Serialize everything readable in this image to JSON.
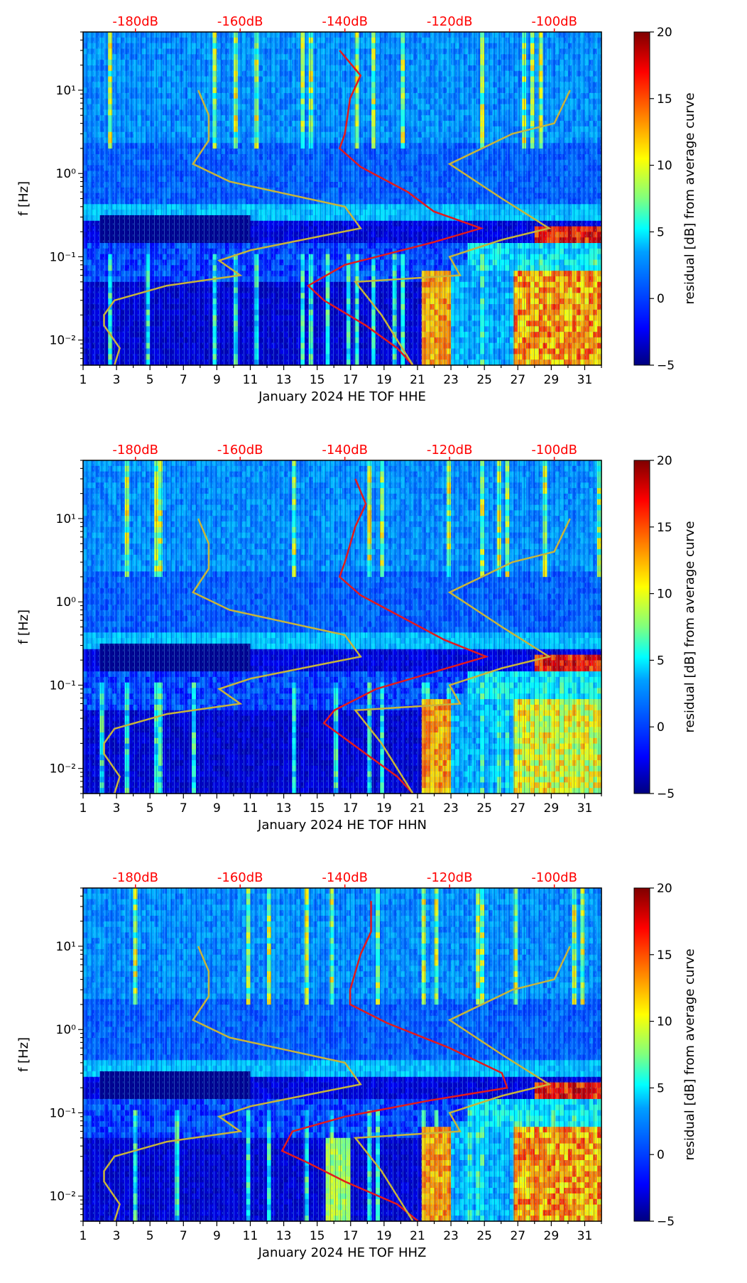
{
  "colors": {
    "noise_curve": "#e31a1c",
    "model_curve": "#c8b43a",
    "db_text": "#ff0000",
    "colormap": [
      "#00007f",
      "#0000ff",
      "#007fff",
      "#00ffff",
      "#7fff7f",
      "#ffff00",
      "#ff7f00",
      "#ff0000",
      "#7f0000"
    ]
  },
  "chart_data": [
    {
      "type": "heatmap",
      "title": "",
      "xlabel": "January 2024 HE TOF  HHE",
      "ylabel": "f [Hz]",
      "x_ticks": [
        "1",
        "3",
        "5",
        "7",
        "9",
        "11",
        "13",
        "15",
        "17",
        "19",
        "21",
        "23",
        "25",
        "27",
        "29",
        "31"
      ],
      "xlim": [
        1,
        32
      ],
      "y_ticks": [
        "10⁻²",
        "10⁻¹",
        "10⁰",
        "10¹"
      ],
      "ylim": [
        0.005,
        50
      ],
      "top_axis_labels": [
        "-180dB",
        "-160dB",
        "-140dB",
        "-120dB",
        "-100dB"
      ],
      "colorbar": {
        "label": "residual [dB] from average curve",
        "ticks": [
          "−5",
          "0",
          "5",
          "10",
          "15",
          "20"
        ],
        "range": [
          -5,
          20
        ]
      },
      "red_curve_db": [
        [
          -141,
          30
        ],
        [
          -137,
          15
        ],
        [
          -139,
          8
        ],
        [
          -140,
          3
        ],
        [
          -141,
          2
        ],
        [
          -137,
          1.2
        ],
        [
          -128,
          0.6
        ],
        [
          -123,
          0.35
        ],
        [
          -114,
          0.22
        ],
        [
          -123,
          0.15
        ],
        [
          -140,
          0.08
        ],
        [
          -147,
          0.045
        ],
        [
          -144,
          0.03
        ],
        [
          -136,
          0.015
        ],
        [
          -130,
          0.008
        ],
        [
          -127,
          0.005
        ]
      ],
      "yellow_curve_db": [
        [
          -168,
          10
        ],
        [
          -166,
          5
        ],
        [
          -166,
          2.5
        ],
        [
          -169,
          1.3
        ],
        [
          -162,
          0.8
        ],
        [
          -140,
          0.4
        ],
        [
          -137,
          0.22
        ],
        [
          -144,
          0.18
        ],
        [
          -158,
          0.12
        ],
        [
          -164,
          0.09
        ],
        [
          -160,
          0.06
        ],
        [
          -174,
          0.045
        ],
        [
          -184,
          0.03
        ],
        [
          -186,
          0.02
        ],
        [
          -186,
          0.015
        ],
        [
          -183,
          0.008
        ],
        [
          -184,
          0.005
        ]
      ],
      "yellow_curve2_db": [
        [
          -97,
          10
        ],
        [
          -100,
          4
        ],
        [
          -108,
          3
        ],
        [
          -120,
          1.3
        ],
        [
          -110,
          0.5
        ],
        [
          -101,
          0.22
        ],
        [
          -110,
          0.16
        ],
        [
          -120,
          0.1
        ],
        [
          -118,
          0.06
        ],
        [
          -138,
          0.05
        ],
        [
          -133,
          0.02
        ],
        [
          -127,
          0.005
        ]
      ]
    },
    {
      "type": "heatmap",
      "title": "",
      "xlabel": "January 2024 HE TOF  HHN",
      "ylabel": "f [Hz]",
      "x_ticks": [
        "1",
        "3",
        "5",
        "7",
        "9",
        "11",
        "13",
        "15",
        "17",
        "19",
        "21",
        "23",
        "25",
        "27",
        "29",
        "31"
      ],
      "xlim": [
        1,
        32
      ],
      "y_ticks": [
        "10⁻²",
        "10⁻¹",
        "10⁰",
        "10¹"
      ],
      "ylim": [
        0.005,
        50
      ],
      "top_axis_labels": [
        "-180dB",
        "-160dB",
        "-140dB",
        "-120dB",
        "-100dB"
      ],
      "colorbar": {
        "label": "residual [dB] from average curve",
        "ticks": [
          "−5",
          "0",
          "5",
          "10",
          "15",
          "20"
        ],
        "range": [
          -5,
          20
        ]
      },
      "red_curve_db": [
        [
          -138,
          30
        ],
        [
          -136,
          15
        ],
        [
          -138,
          8
        ],
        [
          -140,
          3
        ],
        [
          -141,
          2
        ],
        [
          -137,
          1.2
        ],
        [
          -128,
          0.6
        ],
        [
          -121,
          0.35
        ],
        [
          -113,
          0.22
        ],
        [
          -122,
          0.15
        ],
        [
          -134,
          0.09
        ],
        [
          -142,
          0.05
        ],
        [
          -144,
          0.035
        ],
        [
          -136,
          0.015
        ],
        [
          -130,
          0.008
        ],
        [
          -127,
          0.005
        ]
      ],
      "yellow_curve_db": [
        [
          -168,
          10
        ],
        [
          -166,
          5
        ],
        [
          -166,
          2.5
        ],
        [
          -169,
          1.3
        ],
        [
          -162,
          0.8
        ],
        [
          -140,
          0.4
        ],
        [
          -137,
          0.22
        ],
        [
          -144,
          0.18
        ],
        [
          -158,
          0.12
        ],
        [
          -164,
          0.09
        ],
        [
          -160,
          0.06
        ],
        [
          -174,
          0.045
        ],
        [
          -184,
          0.03
        ],
        [
          -186,
          0.02
        ],
        [
          -186,
          0.015
        ],
        [
          -183,
          0.008
        ],
        [
          -184,
          0.005
        ]
      ],
      "yellow_curve2_db": [
        [
          -97,
          10
        ],
        [
          -100,
          4
        ],
        [
          -108,
          3
        ],
        [
          -120,
          1.3
        ],
        [
          -110,
          0.5
        ],
        [
          -101,
          0.22
        ],
        [
          -110,
          0.16
        ],
        [
          -120,
          0.1
        ],
        [
          -118,
          0.06
        ],
        [
          -138,
          0.05
        ],
        [
          -133,
          0.02
        ],
        [
          -127,
          0.005
        ]
      ]
    },
    {
      "type": "heatmap",
      "title": "",
      "xlabel": "January 2024 HE TOF  HHZ",
      "ylabel": "f [Hz]",
      "x_ticks": [
        "1",
        "3",
        "5",
        "7",
        "9",
        "11",
        "13",
        "15",
        "17",
        "19",
        "21",
        "23",
        "25",
        "27",
        "29",
        "31"
      ],
      "xlim": [
        1,
        32
      ],
      "y_ticks": [
        "10⁻²",
        "10⁻¹",
        "10⁰",
        "10¹"
      ],
      "ylim": [
        0.005,
        50
      ],
      "top_axis_labels": [
        "-180dB",
        "-160dB",
        "-140dB",
        "-120dB",
        "-100dB"
      ],
      "colorbar": {
        "label": "residual [dB] from average curve",
        "ticks": [
          "−5",
          "0",
          "5",
          "10",
          "15",
          "20"
        ],
        "range": [
          -5,
          20
        ]
      },
      "red_curve_db": [
        [
          -135,
          35
        ],
        [
          -135,
          15
        ],
        [
          -137,
          8
        ],
        [
          -139,
          3
        ],
        [
          -139,
          2
        ],
        [
          -132,
          1.2
        ],
        [
          -120,
          0.6
        ],
        [
          -110,
          0.3
        ],
        [
          -109,
          0.2
        ],
        [
          -124,
          0.14
        ],
        [
          -140,
          0.09
        ],
        [
          -150,
          0.06
        ],
        [
          -152,
          0.035
        ],
        [
          -147,
          0.025
        ],
        [
          -140,
          0.015
        ],
        [
          -130,
          0.008
        ],
        [
          -126,
          0.005
        ]
      ],
      "yellow_curve_db": [
        [
          -168,
          10
        ],
        [
          -166,
          5
        ],
        [
          -166,
          2.5
        ],
        [
          -169,
          1.3
        ],
        [
          -162,
          0.8
        ],
        [
          -140,
          0.4
        ],
        [
          -137,
          0.22
        ],
        [
          -144,
          0.18
        ],
        [
          -158,
          0.12
        ],
        [
          -164,
          0.09
        ],
        [
          -160,
          0.06
        ],
        [
          -174,
          0.045
        ],
        [
          -184,
          0.03
        ],
        [
          -186,
          0.02
        ],
        [
          -186,
          0.015
        ],
        [
          -183,
          0.008
        ],
        [
          -184,
          0.005
        ]
      ],
      "yellow_curve2_db": [
        [
          -97,
          10
        ],
        [
          -100,
          4
        ],
        [
          -108,
          3
        ],
        [
          -120,
          1.3
        ],
        [
          -110,
          0.5
        ],
        [
          -101,
          0.22
        ],
        [
          -110,
          0.16
        ],
        [
          -120,
          0.1
        ],
        [
          -118,
          0.06
        ],
        [
          -138,
          0.05
        ],
        [
          -133,
          0.02
        ],
        [
          -127,
          0.005
        ]
      ]
    }
  ]
}
